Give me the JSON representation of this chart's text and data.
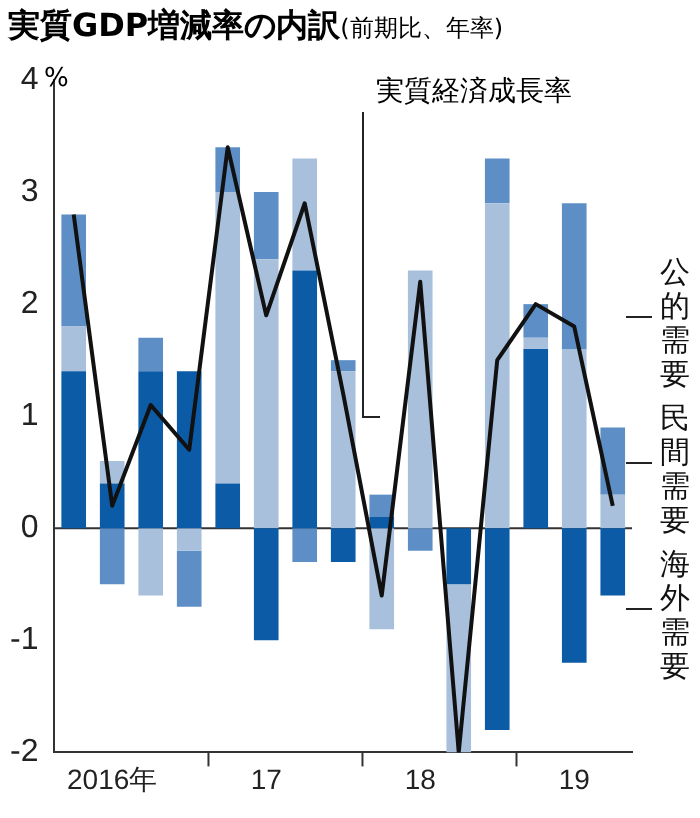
{
  "chart_data": {
    "type": "bar",
    "title": "実質GDP増減率の内訳",
    "subtitle": "(前期比、年率)",
    "ylabel": "%",
    "categories": [
      null,
      "2016年",
      null,
      null,
      null,
      "17",
      null,
      null,
      null,
      "18",
      null,
      null,
      null,
      "19",
      null
    ],
    "stacked": true,
    "ylim": [
      -2,
      4
    ],
    "yticks": [
      -2,
      -1,
      0,
      1,
      2,
      3,
      4
    ],
    "grid": false,
    "ref_lines": [
      {
        "axis": "y",
        "value": 0,
        "color": "#333333"
      }
    ],
    "legend": "right",
    "marker": "none",
    "line_style": "solid",
    "series": [
      {
        "name": "海外需要",
        "color": "#0b5ba6",
        "values": [
          1.4,
          0.4,
          1.4,
          1.4,
          0.4,
          -1.0,
          2.3,
          -0.3,
          0.1,
          null,
          -0.5,
          -1.8,
          1.6,
          -1.2,
          -0.6
        ]
      },
      {
        "name": "民間需要",
        "color": "#a9c0dc",
        "values": [
          0.4,
          0.2,
          -0.6,
          -0.2,
          2.6,
          2.4,
          1.0,
          1.4,
          -0.9,
          2.3,
          -1.5,
          2.9,
          0.1,
          1.6,
          0.3
        ]
      },
      {
        "name": "公的需要",
        "color": "#5d8fc6",
        "values": [
          1.0,
          -0.5,
          0.3,
          -0.5,
          0.4,
          0.6,
          -0.3,
          0.1,
          0.2,
          -0.2,
          null,
          0.4,
          0.3,
          1.3,
          0.6
        ]
      },
      {
        "name": "実質経済成長率",
        "type": "line",
        "color": "#111111",
        "values": [
          2.8,
          0.2,
          1.1,
          0.7,
          3.4,
          1.9,
          2.9,
          1.2,
          -0.6,
          2.2,
          -2.0,
          1.5,
          2.0,
          1.8,
          0.2
        ]
      }
    ]
  }
}
